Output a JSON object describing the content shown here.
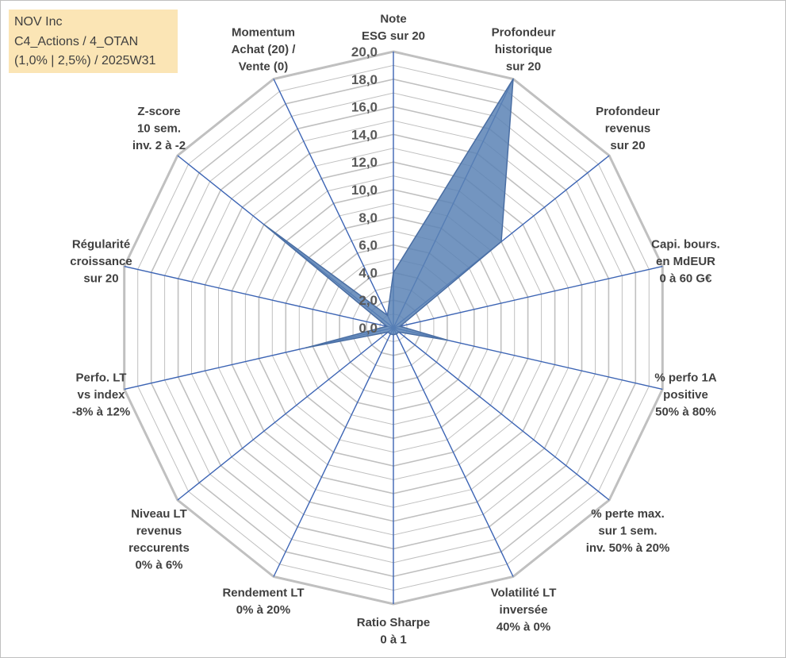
{
  "title_box": {
    "line1": "NOV Inc",
    "line2": "C4_Actions / 4_OTAN",
    "line3": "(1,0% | 2,5%) / 2025W31"
  },
  "colors": {
    "grid": "#c0c0c0",
    "spoke": "#3c64b4",
    "fill": "#5b82b5",
    "fill_stroke": "#4a6ea3",
    "title_bg": "#fbe5b5"
  },
  "chart_data": {
    "type": "radar",
    "rmin": 0,
    "rmax": 20,
    "tick_step": 2,
    "tick_labels": [
      "0,0",
      "2,0",
      "4,0",
      "6,0",
      "8,0",
      "10,0",
      "12,0",
      "14,0",
      "16,0",
      "18,0",
      "20,0"
    ],
    "grid": true,
    "axes": [
      {
        "label": [
          "Note",
          "ESG sur 20"
        ],
        "value": 4.0
      },
      {
        "label": [
          "Profondeur",
          "historique",
          "sur 20"
        ],
        "value": 20.0
      },
      {
        "label": [
          "Profondeur",
          "revenus",
          "sur 20"
        ],
        "value": 10.0
      },
      {
        "label": [
          "Capi. bours.",
          "en MdEUR",
          "0 à 60 G€"
        ],
        "value": 0.5
      },
      {
        "label": [
          "% perfo 1A",
          "positive",
          "50% à 80%"
        ],
        "value": 4.0
      },
      {
        "label": [
          "% perte max.",
          "sur 1 sem.",
          "inv. 50% à 20%"
        ],
        "value": 0.5
      },
      {
        "label": [
          "Volatilité LT",
          "inversée",
          "40% à 0%"
        ],
        "value": 0.5
      },
      {
        "label": [
          "Ratio Sharpe",
          "0 à 1"
        ],
        "value": 0.5
      },
      {
        "label": [
          "Rendement LT",
          "0% à 20%"
        ],
        "value": 0.5
      },
      {
        "label": [
          "Niveau LT",
          "revenus",
          "reccurents",
          "0% à 6%"
        ],
        "value": 0.5
      },
      {
        "label": [
          "Perfo. LT",
          "vs index",
          "-8% à 12%"
        ],
        "value": 6.5
      },
      {
        "label": [
          "Régularité",
          "croissance",
          "sur 20"
        ],
        "value": 0.5
      },
      {
        "label": [
          "Z-score",
          "10 sem.",
          "inv. 2 à -2"
        ],
        "value": 12.0
      },
      {
        "label": [
          "Momentum",
          "Achat (20) /",
          "Vente (0)"
        ],
        "value": 1.0
      }
    ]
  }
}
